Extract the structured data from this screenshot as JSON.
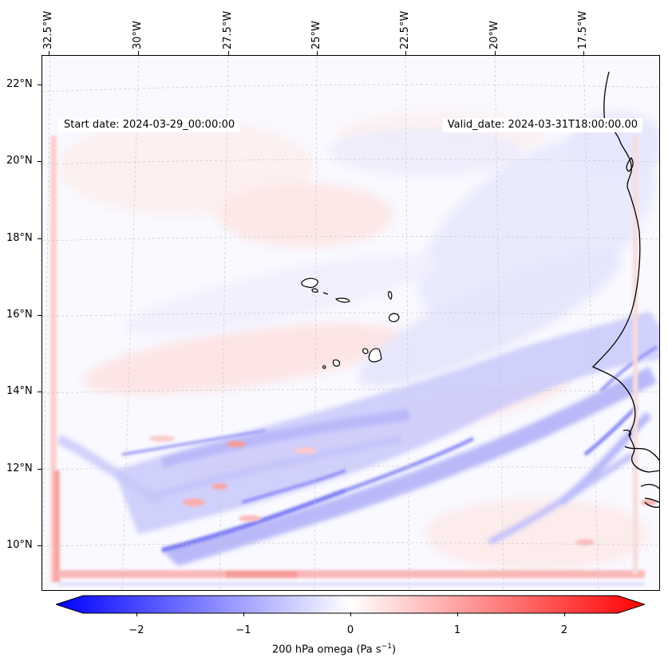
{
  "map": {
    "start_date": "Start date: 2024-03-29_00:00:00",
    "valid_date": "Valid_date: 2024-03-31T18:00:00.00",
    "lon_ticks": [
      "32.5°W",
      "30°W",
      "27.5°W",
      "25°W",
      "22.5°W",
      "20°W",
      "17.5°W"
    ],
    "lat_ticks": [
      "22°N",
      "20°N",
      "18°N",
      "16°N",
      "14°N",
      "12°N",
      "10°N"
    ],
    "colors": {
      "negative": "#0000ff",
      "neutral": "#ffffff",
      "positive": "#ff0000",
      "coastline": "#000000"
    }
  },
  "colorbar": {
    "ticks": [
      "−2",
      "−1",
      "0",
      "1",
      "2"
    ],
    "label_prefix": "200 hPa omega (Pa s",
    "label_exp": "−1",
    "label_suffix": ")"
  }
}
